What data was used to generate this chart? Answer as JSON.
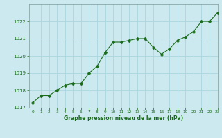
{
  "x": [
    0,
    1,
    2,
    3,
    4,
    5,
    6,
    7,
    8,
    9,
    10,
    11,
    12,
    13,
    14,
    15,
    16,
    17,
    18,
    19,
    20,
    21,
    22,
    23
  ],
  "y": [
    1017.3,
    1017.7,
    1017.7,
    1018.0,
    1018.3,
    1018.4,
    1018.4,
    1019.0,
    1019.4,
    1020.2,
    1020.8,
    1020.8,
    1020.9,
    1021.0,
    1021.0,
    1020.5,
    1020.1,
    1020.4,
    1020.9,
    1021.1,
    1021.4,
    1022.0,
    1022.0,
    1022.5
  ],
  "line_color": "#1a6b1a",
  "marker": "D",
  "marker_size": 2.5,
  "bg_color": "#cce9f0",
  "grid_color": "#b0d8e0",
  "xlabel": "Graphe pression niveau de la mer (hPa)",
  "xlabel_color": "#1a6b1a",
  "tick_color": "#1a6b1a",
  "spine_color": "#7a9a9a",
  "ylim": [
    1017,
    1023
  ],
  "xlim": [
    -0.5,
    23
  ],
  "yticks": [
    1017,
    1018,
    1019,
    1020,
    1021,
    1022
  ],
  "xticks": [
    0,
    1,
    2,
    3,
    4,
    5,
    6,
    7,
    8,
    9,
    10,
    11,
    12,
    13,
    14,
    15,
    16,
    17,
    18,
    19,
    20,
    21,
    22,
    23
  ]
}
